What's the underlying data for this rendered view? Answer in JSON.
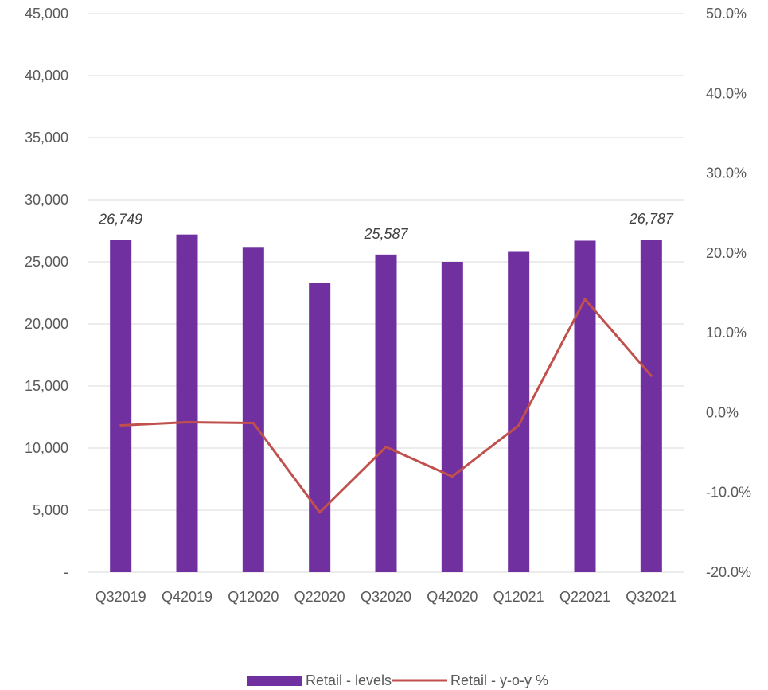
{
  "chart_data": {
    "type": "bar",
    "title": "",
    "categories": [
      "Q32019",
      "Q42019",
      "Q12020",
      "Q22020",
      "Q32020",
      "Q42020",
      "Q12021",
      "Q22021",
      "Q32021"
    ],
    "series": [
      {
        "name": "Retail - levels",
        "type": "bar",
        "axis": "left",
        "color": "#7030A0",
        "values": [
          26749,
          27200,
          26200,
          23300,
          25587,
          25000,
          25800,
          26700,
          26787
        ]
      },
      {
        "name": "Retail - y-o-y %",
        "type": "line",
        "axis": "right",
        "color": "#C0504D",
        "values": [
          -1.6,
          -1.2,
          -1.3,
          -12.5,
          -4.3,
          -8.0,
          -1.6,
          14.2,
          4.6
        ]
      }
    ],
    "data_labels": [
      {
        "index": 0,
        "text": "26,749"
      },
      {
        "index": 4,
        "text": "25,587"
      },
      {
        "index": 8,
        "text": "26,787"
      }
    ],
    "left_axis": {
      "min": 0,
      "max": 45000,
      "step": 5000,
      "tick_labels": [
        "-",
        "5,000",
        "10,000",
        "15,000",
        "20,000",
        "25,000",
        "30,000",
        "35,000",
        "40,000",
        "45,000"
      ]
    },
    "right_axis": {
      "min": -20,
      "max": 50,
      "step": 10,
      "tick_labels": [
        "-20.0%",
        "-10.0%",
        "0.0%",
        "10.0%",
        "20.0%",
        "30.0%",
        "40.0%",
        "50.0%"
      ]
    },
    "grid": true,
    "legend": "bottom-center"
  }
}
